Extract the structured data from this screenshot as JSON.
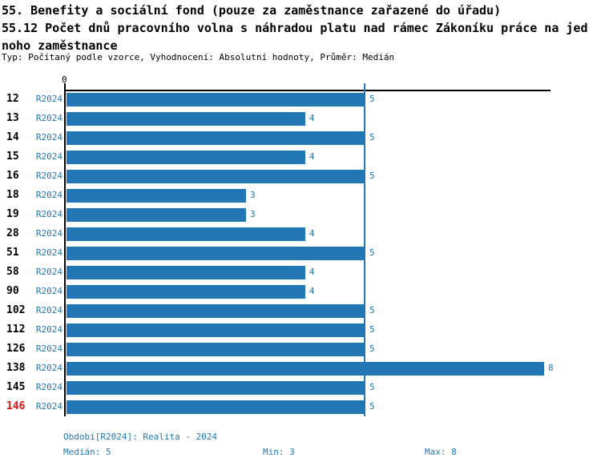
{
  "header": {
    "title": "55. Benefity a sociální fond (pouze za zaměstnance zařazené do úřadu)",
    "subtitle_lines": [
      "55.12 Počet dnů pracovního volna s náhradou platu nad rámec Zákoníku práce na jed",
      "noho zaměstnance"
    ],
    "meta": "Typ: Počítaný podle vzorce, Vyhodnocení: Absolutní hodnoty, Průměr: Medián"
  },
  "chart_data": {
    "type": "bar",
    "orientation": "horizontal",
    "title": "55.12 Počet dnů pracovního volna s náhradou platu nad rámec Zákoníku práce na jednoho zaměstnance",
    "series_label": "R2024",
    "categories": [
      "12",
      "13",
      "14",
      "15",
      "16",
      "18",
      "19",
      "28",
      "51",
      "58",
      "90",
      "102",
      "112",
      "126",
      "138",
      "145",
      "146"
    ],
    "values": [
      5,
      4,
      5,
      4,
      5,
      3,
      3,
      4,
      5,
      4,
      4,
      5,
      5,
      5,
      8,
      5,
      5
    ],
    "highlighted_category": "146",
    "axis_origin_label": "0",
    "xlim": [
      0,
      8.1
    ],
    "median_line_value": 5,
    "grid": false,
    "bar_color": "#2377b4",
    "accent_blue": "#2377b4",
    "highlight_red": "#dd1111"
  },
  "footer": {
    "period": "Období[R2024]: Realita - 2024",
    "median": "Medián: 5",
    "min": "Min: 3",
    "max": "Max: 8"
  }
}
